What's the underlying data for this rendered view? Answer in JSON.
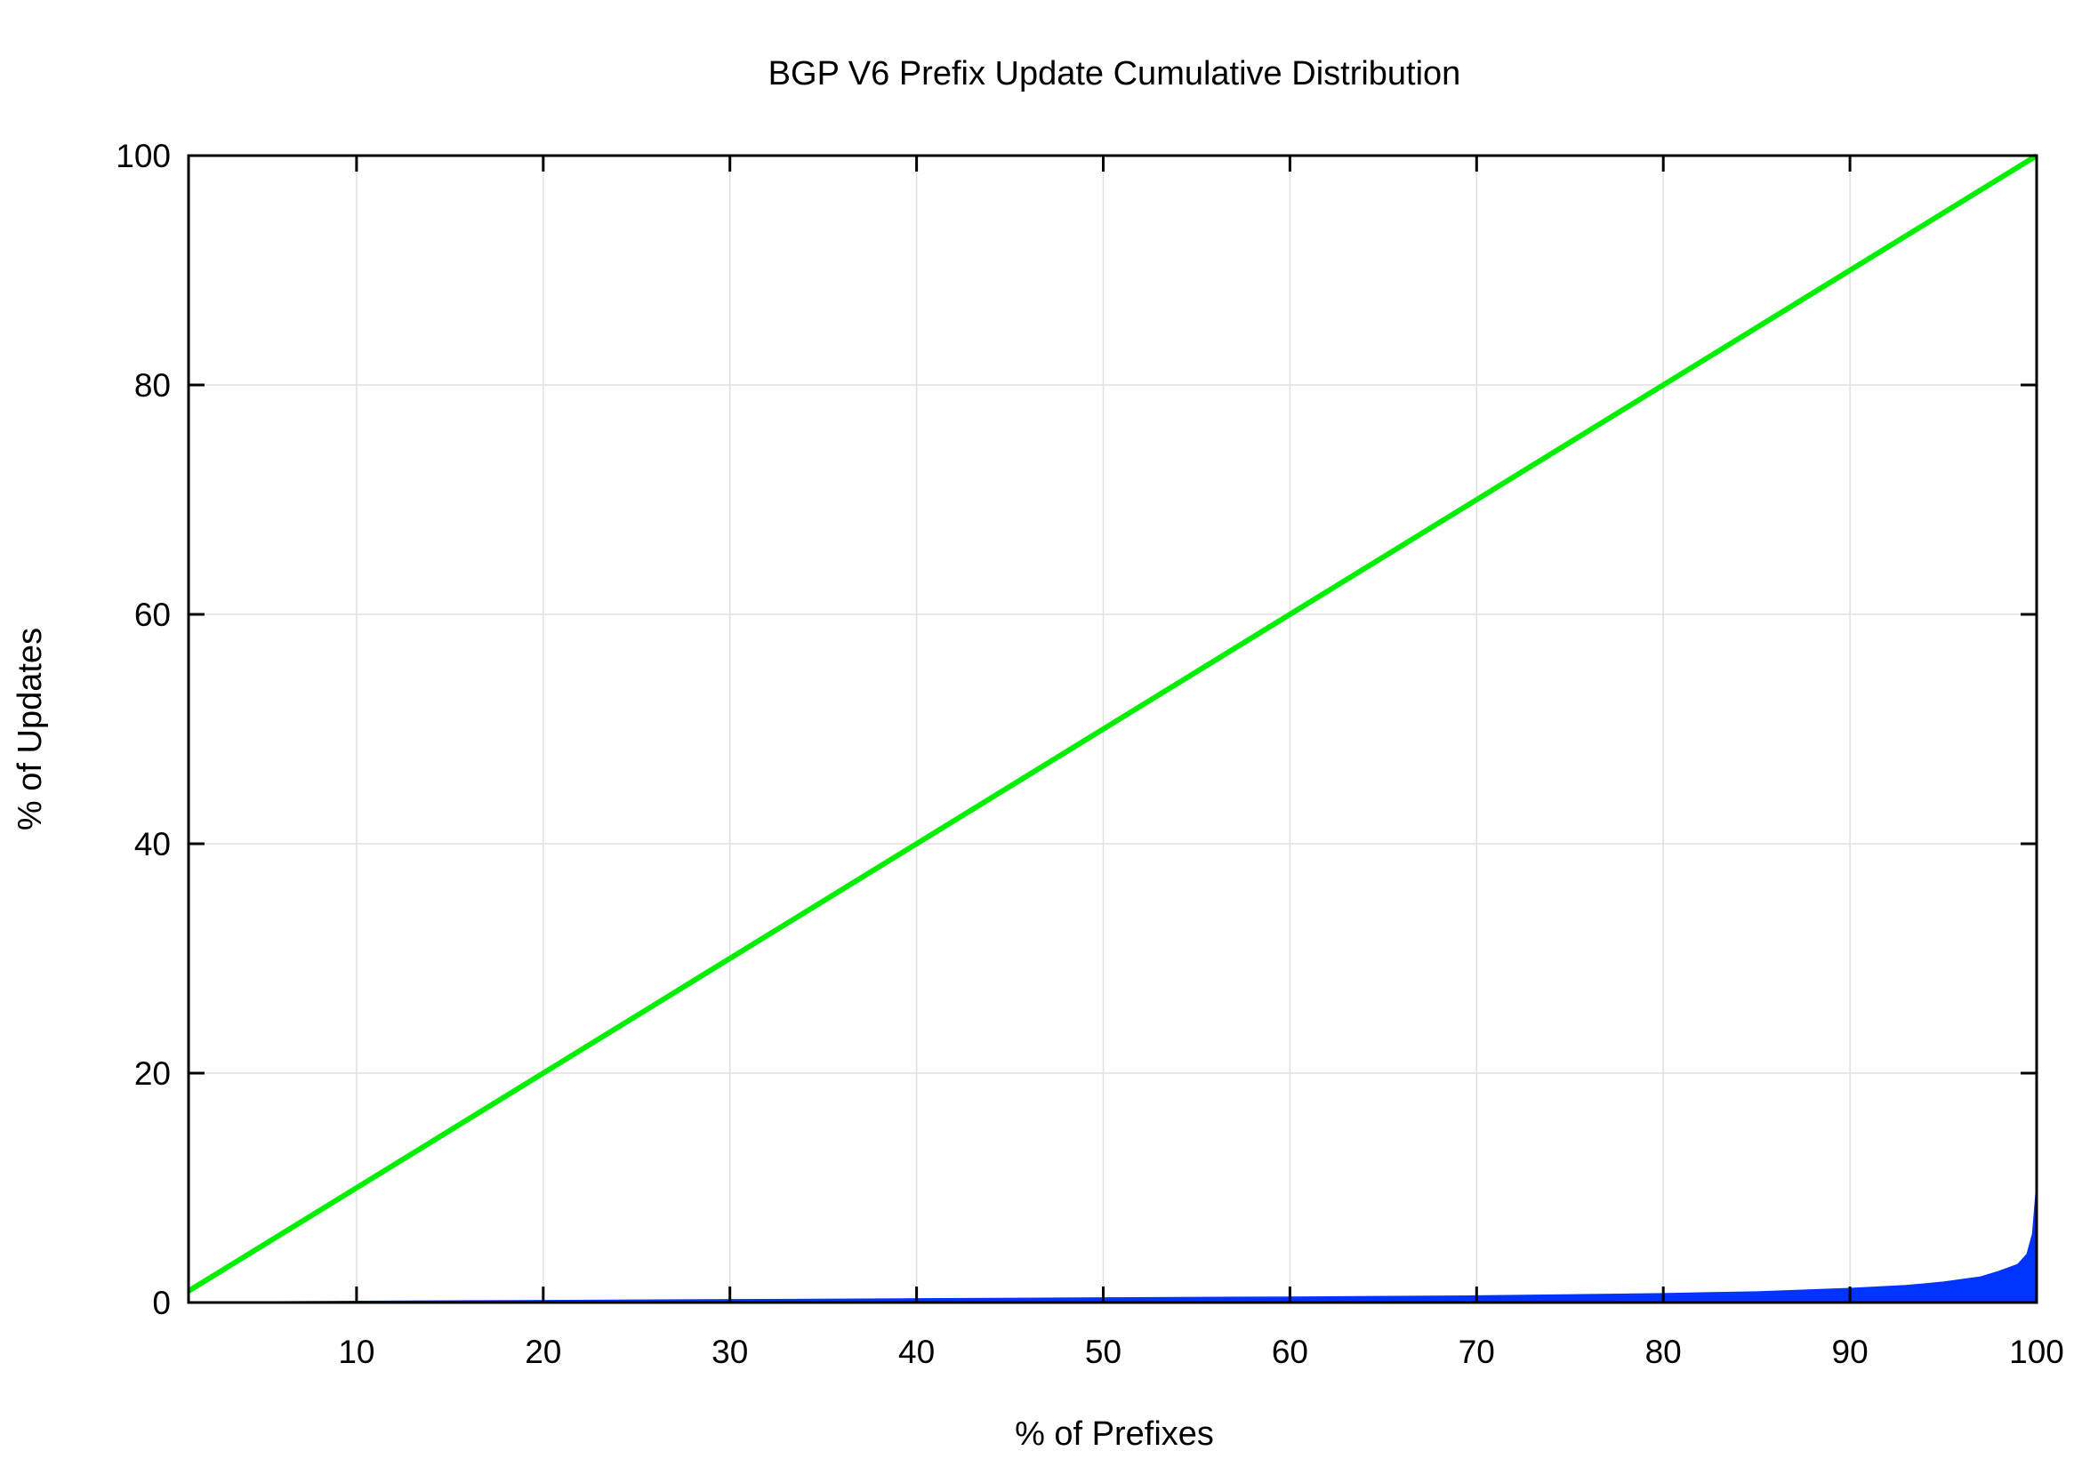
{
  "chart_data": {
    "type": "area",
    "title": "BGP V6 Prefix Update Cumulative Distribution",
    "xlabel": "% of Prefixes",
    "ylabel": "% of Updates",
    "xlim": [
      1,
      100
    ],
    "ylim": [
      0,
      100
    ],
    "xticks": [
      10,
      20,
      30,
      40,
      50,
      60,
      70,
      80,
      90,
      100
    ],
    "yticks": [
      0,
      20,
      40,
      60,
      80,
      100
    ],
    "grid": true,
    "colors": {
      "reference": "#00ee00",
      "distribution": "#0033ff",
      "grid": "#e0e0e0"
    },
    "series": [
      {
        "style": "line",
        "x": [
          1,
          100
        ],
        "y": [
          1,
          100
        ]
      },
      {
        "style": "filled-area",
        "x": [
          1,
          7,
          10,
          20,
          30,
          40,
          50,
          60,
          70,
          80,
          85,
          90,
          93,
          95,
          97,
          98,
          99,
          99.5,
          99.8,
          100
        ],
        "y": [
          0,
          0.05,
          0.08,
          0.15,
          0.22,
          0.3,
          0.38,
          0.45,
          0.55,
          0.75,
          0.9,
          1.2,
          1.45,
          1.75,
          2.2,
          2.7,
          3.3,
          4.2,
          6.0,
          10.0
        ]
      }
    ]
  }
}
